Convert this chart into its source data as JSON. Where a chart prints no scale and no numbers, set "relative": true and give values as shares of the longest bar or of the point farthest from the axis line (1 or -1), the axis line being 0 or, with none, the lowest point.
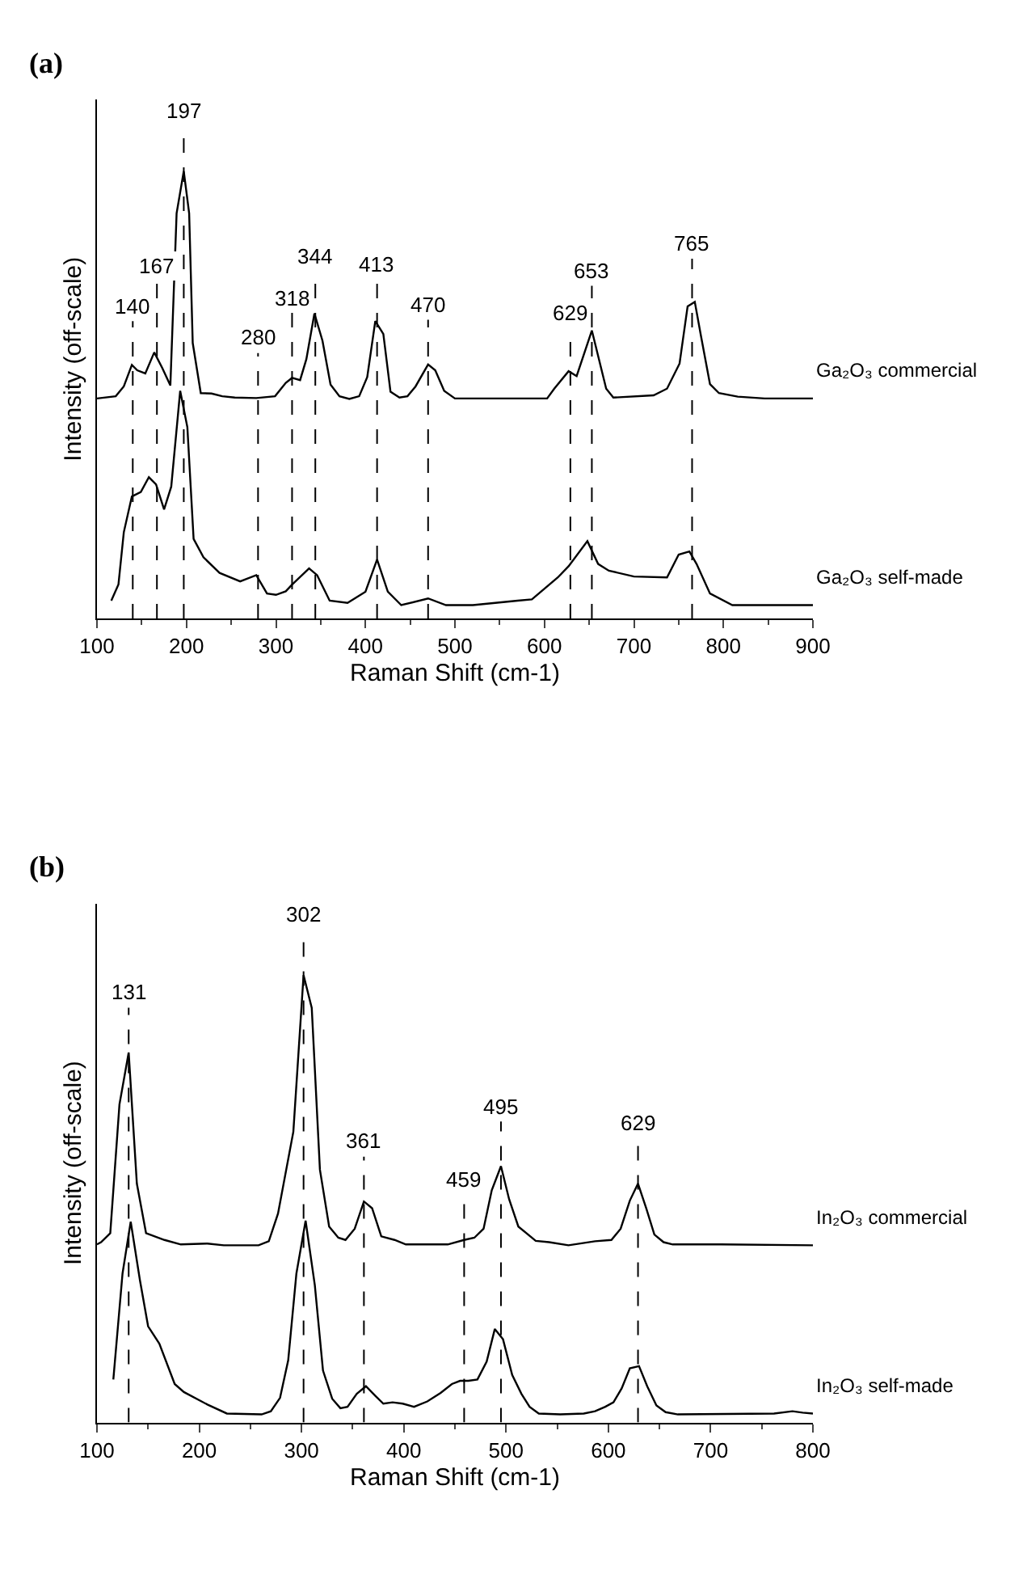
{
  "chart_data": [
    {
      "type": "line",
      "title": "(a)",
      "xlabel": "Raman Shift (cm-1)",
      "ylabel": "Intensity (off-scale)",
      "relative": true,
      "xlim": [
        100,
        900
      ],
      "xticks": [
        100,
        200,
        300,
        400,
        500,
        600,
        700,
        800,
        900
      ],
      "series": [
        {
          "name": "Ga₂O₃ commercial",
          "color": "#000000",
          "x": [
            100,
            121,
            130,
            139,
            145,
            154,
            164,
            173,
            182,
            189,
            197,
            203,
            207,
            216,
            228,
            240,
            254,
            278,
            299,
            311,
            318,
            327,
            334,
            343,
            352,
            361,
            371,
            382,
            393,
            402,
            411,
            420,
            428,
            438,
            447,
            456,
            470,
            478,
            488,
            500,
            603,
            611,
            627,
            636,
            653,
            669,
            677,
            722,
            737,
            751,
            760,
            768,
            775,
            785,
            795,
            816,
            846,
            900
          ],
          "values": [
            0.492,
            0.497,
            0.519,
            0.567,
            0.555,
            0.548,
            0.595,
            0.56,
            0.521,
            0.906,
            1.0,
            0.906,
            0.616,
            0.504,
            0.503,
            0.497,
            0.494,
            0.493,
            0.497,
            0.527,
            0.538,
            0.533,
            0.58,
            0.682,
            0.621,
            0.523,
            0.497,
            0.491,
            0.497,
            0.54,
            0.665,
            0.636,
            0.507,
            0.494,
            0.497,
            0.519,
            0.568,
            0.555,
            0.509,
            0.492,
            0.492,
            0.514,
            0.553,
            0.542,
            0.644,
            0.514,
            0.494,
            0.499,
            0.514,
            0.57,
            0.698,
            0.708,
            0.631,
            0.524,
            0.504,
            0.496,
            0.492,
            0.492
          ]
        },
        {
          "name": "Ga₂O₃ self-made",
          "color": "#000000",
          "x": [
            116,
            124,
            130,
            139,
            149,
            158,
            166,
            175,
            183,
            193,
            201,
            208,
            219,
            237,
            260,
            278,
            290,
            300,
            311,
            318,
            337,
            346,
            360,
            380,
            400,
            413,
            425,
            440,
            470,
            490,
            520,
            570,
            586,
            615,
            627,
            648,
            660,
            672,
            700,
            737,
            750,
            762,
            770,
            785,
            810,
            850,
            900
          ],
          "values": [
            0.04,
            0.076,
            0.193,
            0.273,
            0.283,
            0.316,
            0.3,
            0.244,
            0.295,
            0.509,
            0.428,
            0.178,
            0.137,
            0.102,
            0.083,
            0.097,
            0.056,
            0.053,
            0.061,
            0.076,
            0.112,
            0.097,
            0.04,
            0.035,
            0.06,
            0.132,
            0.06,
            0.03,
            0.045,
            0.03,
            0.03,
            0.04,
            0.043,
            0.092,
            0.117,
            0.173,
            0.122,
            0.107,
            0.094,
            0.092,
            0.143,
            0.15,
            0.122,
            0.056,
            0.03,
            0.03,
            0.03
          ]
        }
      ],
      "ref_lines": [
        {
          "axis": "x",
          "value": 140,
          "label": "140",
          "line_style": "dashed"
        },
        {
          "axis": "x",
          "value": 167,
          "label": "167",
          "line_style": "dashed"
        },
        {
          "axis": "x",
          "value": 197,
          "label": "197",
          "line_style": "dashed"
        },
        {
          "axis": "x",
          "value": 280,
          "label": "280",
          "line_style": "dashed"
        },
        {
          "axis": "x",
          "value": 318,
          "label": "318",
          "line_style": "dashed"
        },
        {
          "axis": "x",
          "value": 344,
          "label": "344",
          "line_style": "dashed"
        },
        {
          "axis": "x",
          "value": 413,
          "label": "413",
          "line_style": "dashed"
        },
        {
          "axis": "x",
          "value": 470,
          "label": "470",
          "line_style": "dashed"
        },
        {
          "axis": "x",
          "value": 629,
          "label": "629",
          "line_style": "dashed"
        },
        {
          "axis": "x",
          "value": 653,
          "label": "653",
          "line_style": "dashed"
        },
        {
          "axis": "x",
          "value": 765,
          "label": "765",
          "line_style": "dashed"
        }
      ]
    },
    {
      "type": "line",
      "title": "(b)",
      "xlabel": "Raman Shift (cm-1)",
      "ylabel": "Intensity (off-scale)",
      "relative": true,
      "xlim": [
        100,
        800
      ],
      "xticks": [
        100,
        200,
        300,
        400,
        500,
        600,
        700,
        800
      ],
      "series": [
        {
          "name": "In₂O₃ commercial",
          "color": "#000000",
          "x": [
            100,
            104,
            113,
            122,
            131,
            139,
            148,
            166,
            182,
            208,
            224,
            258,
            268,
            277,
            292,
            302,
            310,
            318,
            327,
            336,
            343,
            352,
            361,
            369,
            378,
            391,
            402,
            443,
            459,
            469,
            478,
            486,
            495,
            503,
            512,
            529,
            542,
            561,
            587,
            603,
            612,
            621,
            629,
            637,
            645,
            654,
            663,
            710,
            800
          ],
          "values": [
            0.398,
            0.403,
            0.423,
            0.711,
            0.827,
            0.534,
            0.423,
            0.408,
            0.398,
            0.4,
            0.396,
            0.396,
            0.405,
            0.467,
            0.65,
            1.0,
            0.927,
            0.565,
            0.438,
            0.413,
            0.408,
            0.433,
            0.494,
            0.479,
            0.416,
            0.408,
            0.398,
            0.398,
            0.408,
            0.413,
            0.433,
            0.519,
            0.573,
            0.499,
            0.438,
            0.406,
            0.403,
            0.396,
            0.405,
            0.408,
            0.433,
            0.496,
            0.534,
            0.479,
            0.42,
            0.403,
            0.398,
            0.398,
            0.396
          ]
        },
        {
          "name": "In₂O₃ self-made",
          "color": "#000000",
          "x": [
            116,
            125,
            133,
            142,
            150,
            161,
            176,
            185,
            208,
            227,
            261,
            270,
            279,
            287,
            295,
            304,
            313,
            321,
            330,
            338,
            345,
            354,
            363,
            372,
            380,
            389,
            399,
            410,
            423,
            436,
            447,
            455,
            463,
            472,
            481,
            489,
            497,
            506,
            515,
            523,
            532,
            553,
            576,
            587,
            597,
            605,
            613,
            621,
            630,
            638,
            647,
            656,
            668,
            762,
            780,
            790,
            800
          ],
          "values": [
            0.096,
            0.333,
            0.449,
            0.318,
            0.215,
            0.176,
            0.086,
            0.068,
            0.04,
            0.02,
            0.018,
            0.025,
            0.055,
            0.139,
            0.333,
            0.451,
            0.307,
            0.116,
            0.053,
            0.032,
            0.035,
            0.064,
            0.081,
            0.06,
            0.042,
            0.045,
            0.042,
            0.035,
            0.047,
            0.066,
            0.086,
            0.093,
            0.093,
            0.096,
            0.136,
            0.209,
            0.186,
            0.106,
            0.064,
            0.035,
            0.02,
            0.018,
            0.02,
            0.025,
            0.035,
            0.045,
            0.076,
            0.121,
            0.126,
            0.081,
            0.038,
            0.023,
            0.018,
            0.02,
            0.025,
            0.022,
            0.02
          ]
        }
      ],
      "ref_lines": [
        {
          "axis": "x",
          "value": 131,
          "label": "131",
          "line_style": "dashed"
        },
        {
          "axis": "x",
          "value": 302,
          "label": "302",
          "line_style": "dashed"
        },
        {
          "axis": "x",
          "value": 361,
          "label": "361",
          "line_style": "dashed"
        },
        {
          "axis": "x",
          "value": 459,
          "label": "459",
          "line_style": "dashed"
        },
        {
          "axis": "x",
          "value": 495,
          "label": "495",
          "line_style": "dashed"
        },
        {
          "axis": "x",
          "value": 629,
          "label": "629",
          "line_style": "dashed"
        }
      ]
    }
  ]
}
